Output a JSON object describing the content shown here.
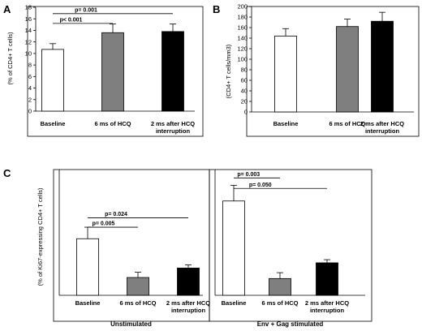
{
  "panels": {
    "A": {
      "letter": "A",
      "ylabel": "(% of CD4+ T cells)"
    },
    "B": {
      "letter": "B",
      "ylabel": "(CD4+ T cells/mm3)"
    },
    "C": {
      "letter": "C",
      "ylabel": "(% of Ki67-expressing CD4+ T cells)"
    }
  },
  "chart_data": [
    {
      "panel": "A",
      "type": "bar",
      "categories": [
        [
          "Baseline"
        ],
        [
          "6 ms of HCQ"
        ],
        [
          "2 ms after HCQ",
          "interruption"
        ]
      ],
      "values": [
        10.7,
        13.6,
        13.8
      ],
      "errors": [
        1.0,
        1.5,
        1.3
      ],
      "colors": [
        "#ffffff",
        "#7f7f7f",
        "#000000"
      ],
      "ylabel": "(% of CD4+ T cells)",
      "ylim": [
        0,
        18
      ],
      "yticks": [
        0,
        2,
        4,
        6,
        8,
        10,
        12,
        14,
        16,
        18
      ],
      "annotations": [
        {
          "text": "p= 0.001",
          "from": 0,
          "to": 2,
          "y": 16.9
        },
        {
          "text": "p< 0.001",
          "from": 0,
          "to": 1,
          "y": 15.2
        }
      ]
    },
    {
      "panel": "B",
      "type": "bar",
      "categories": [
        [
          "Baseline"
        ],
        [
          "6 ms of HCQ"
        ],
        [
          "2 ms after HCQ",
          "interruption"
        ]
      ],
      "values": [
        144,
        162,
        172
      ],
      "errors": [
        14,
        14,
        17
      ],
      "colors": [
        "#ffffff",
        "#7f7f7f",
        "#000000"
      ],
      "ylabel": "(CD4+ T cells/mm3)",
      "ylim": [
        0,
        200
      ],
      "yticks": [
        0,
        20,
        40,
        60,
        80,
        100,
        120,
        140,
        160,
        180,
        200
      ],
      "annotations": []
    },
    {
      "panel": "C-left",
      "group_label": "Unstimulated",
      "type": "bar",
      "categories": [
        [
          "Baseline"
        ],
        [
          "6 ms of HCQ"
        ],
        [
          "2 ms after HCQ",
          "interruption"
        ]
      ],
      "values": [
        2.7,
        0.85,
        1.3
      ],
      "errors": [
        0.55,
        0.25,
        0.15
      ],
      "colors": [
        "#ffffff",
        "#7f7f7f",
        "#000000"
      ],
      "ylabel": "(% of Ki67-expressing CD4+ T cells)",
      "ylim": [
        0,
        6
      ],
      "annotations": [
        {
          "text": "p= 0.024",
          "from": 0,
          "to": 2,
          "y": 3.7
        },
        {
          "text": "p= 0.005",
          "from": 0,
          "to": 1,
          "y": 3.25
        }
      ]
    },
    {
      "panel": "C-right",
      "group_label": "Env + Gag stimulated",
      "type": "bar",
      "categories": [
        [
          "Baseline"
        ],
        [
          "6 ms of HCQ"
        ],
        [
          "2 ms after HCQ",
          "interruption"
        ]
      ],
      "values": [
        4.5,
        0.8,
        1.55
      ],
      "errors": [
        0.75,
        0.28,
        0.15
      ],
      "colors": [
        "#ffffff",
        "#7f7f7f",
        "#000000"
      ],
      "ylim": [
        0,
        6
      ],
      "annotations": [
        {
          "text": "p= 0.003",
          "from": 0,
          "to": 1,
          "y": 5.6
        },
        {
          "text": "p= 0.050",
          "from": 0,
          "to": 2,
          "y": 5.1
        }
      ]
    }
  ]
}
